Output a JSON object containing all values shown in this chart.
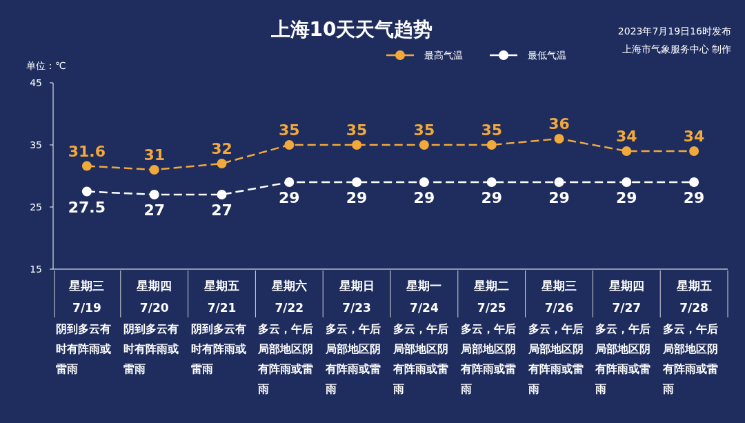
{
  "chart_data": {
    "type": "line",
    "title": "上海10天天气趋势",
    "ylabel": "单位：℃",
    "categories": [
      "星期三\n7/19",
      "星期四\n7/20",
      "星期五\n7/21",
      "星期六\n7/22",
      "星期日\n7/23",
      "星期一\n7/24",
      "星期二\n7/25",
      "星期三\n7/26",
      "星期四\n7/27",
      "星期五\n7/28"
    ],
    "series": [
      {
        "name": "最高气温",
        "color": "#f2a93b",
        "values": [
          31.6,
          31,
          32,
          35,
          35,
          35,
          35,
          36,
          34,
          34
        ]
      },
      {
        "name": "最低气温",
        "color": "#ffffff",
        "values": [
          27.5,
          27,
          27,
          29,
          29,
          29,
          29,
          29,
          29,
          29
        ]
      }
    ],
    "ylim": [
      15,
      45
    ],
    "yticks": [
      15,
      25,
      35,
      45
    ],
    "grid": false,
    "legend": "top",
    "marker": "circle",
    "line_style": "dashed",
    "data_labels": true,
    "annotations": [
      "阴到多云有时有阵雨或雷雨",
      "阴到多云有时有阵雨或雷雨",
      "阴到多云有时有阵雨或雷雨",
      "多云，午后局部地区阴有阵雨或雷雨",
      "多云，午后局部地区阴有阵雨或雷雨",
      "多云，午后局部地区阴有阵雨或雷雨",
      "多云，午后局部地区阴有阵雨或雷雨",
      "多云，午后局部地区阴有阵雨或雷雨",
      "多云，午后局部地区阴有阵雨或雷雨",
      "多云，午后局部地区阴有阵雨或雷雨",
      "2023年7月19日16时发布",
      "上海市气象服务中心 制作"
    ]
  }
}
